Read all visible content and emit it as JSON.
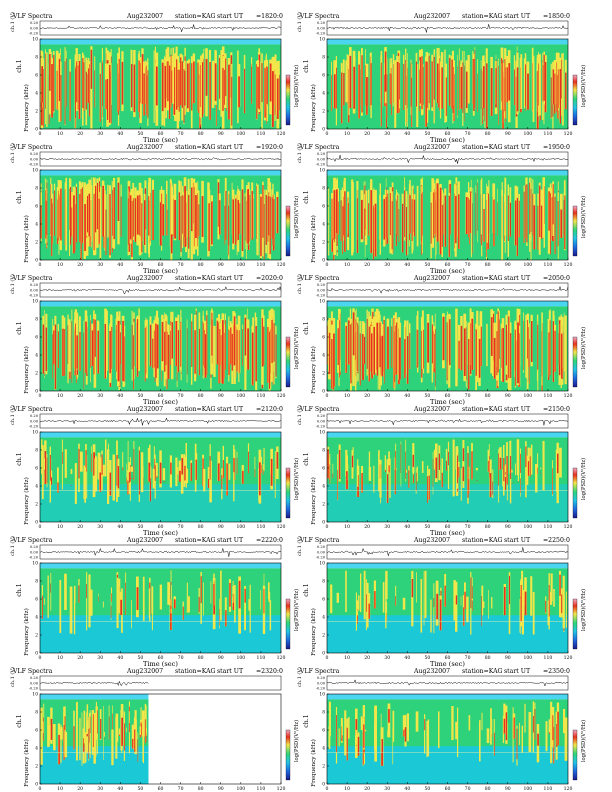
{
  "page": {
    "panel_title": "VLF Spectra",
    "date": "Aug232007",
    "station": "station=KAG",
    "ut_prefix": "start  UT"
  },
  "chart_data": [
    {
      "type": "heatmap",
      "ut": "=1820:0",
      "title": "VLF Spectra",
      "xlabel": "Time  (sec)",
      "ylabel": "Frequency  (kHz)",
      "channel_label": "ch.1",
      "waveform_label": "ch.1 (V)",
      "waveform_ticks": [
        "0.20",
        "0.00",
        "-0.20"
      ],
      "colorbar_label": "log(PSD)(V²/Hz)",
      "x_ticks": [
        0,
        10,
        20,
        30,
        40,
        50,
        60,
        70,
        80,
        90,
        100,
        110,
        120
      ],
      "y_ticks": [
        0,
        2,
        4,
        6,
        8,
        10
      ],
      "xlim": [
        0,
        120
      ],
      "ylim": [
        0,
        10
      ],
      "data_end": 120,
      "activity": "high"
    },
    {
      "type": "heatmap",
      "ut": "=1850:0",
      "title": "VLF Spectra",
      "xlabel": "Time  (sec)",
      "ylabel": "Frequency  (kHz)",
      "channel_label": "ch.1",
      "waveform_label": "ch.1 (V)",
      "waveform_ticks": [
        "0.20",
        "0.00",
        "-0.20"
      ],
      "colorbar_label": "log(PSD)(V²/Hz)",
      "x_ticks": [
        0,
        10,
        20,
        30,
        40,
        50,
        60,
        70,
        80,
        90,
        100,
        110,
        120
      ],
      "y_ticks": [
        0,
        2,
        4,
        6,
        8,
        10
      ],
      "xlim": [
        0,
        120
      ],
      "ylim": [
        0,
        10
      ],
      "data_end": 120,
      "activity": "high"
    },
    {
      "type": "heatmap",
      "ut": "=1920:0",
      "title": "VLF Spectra",
      "xlabel": "Time  (sec)",
      "ylabel": "Frequency  (kHz)",
      "channel_label": "ch.1",
      "waveform_label": "ch.1 (V)",
      "waveform_ticks": [
        "0.20",
        "0.00",
        "-0.20"
      ],
      "colorbar_label": "log(PSD)(V²/Hz)",
      "x_ticks": [
        0,
        10,
        20,
        30,
        40,
        50,
        60,
        70,
        80,
        90,
        100,
        110,
        120
      ],
      "y_ticks": [
        0,
        2,
        4,
        6,
        8,
        10
      ],
      "xlim": [
        0,
        120
      ],
      "ylim": [
        0,
        10
      ],
      "data_end": 120,
      "activity": "high"
    },
    {
      "type": "heatmap",
      "ut": "=1950:0",
      "title": "VLF Spectra",
      "xlabel": "Time  (sec)",
      "ylabel": "Frequency  (kHz)",
      "channel_label": "ch.1",
      "waveform_label": "ch.1 (V)",
      "waveform_ticks": [
        "0.20",
        "0.00",
        "-0.20"
      ],
      "colorbar_label": "log(PSD)(V²/Hz)",
      "x_ticks": [
        0,
        10,
        20,
        30,
        40,
        50,
        60,
        70,
        80,
        90,
        100,
        110,
        120
      ],
      "y_ticks": [
        0,
        2,
        4,
        6,
        8,
        10
      ],
      "xlim": [
        0,
        120
      ],
      "ylim": [
        0,
        10
      ],
      "data_end": 120,
      "activity": "high"
    },
    {
      "type": "heatmap",
      "ut": "=2020:0",
      "title": "VLF Spectra",
      "xlabel": "Time  (sec)",
      "ylabel": "Frequency  (kHz)",
      "channel_label": "ch.1",
      "waveform_label": "ch.1 (V)",
      "waveform_ticks": [
        "0.20",
        "0.00",
        "-0.20"
      ],
      "colorbar_label": "log(PSD)(V²/Hz)",
      "x_ticks": [
        0,
        10,
        20,
        30,
        40,
        50,
        60,
        70,
        80,
        90,
        100,
        110,
        120
      ],
      "y_ticks": [
        0,
        2,
        4,
        6,
        8,
        10
      ],
      "xlim": [
        0,
        120
      ],
      "ylim": [
        0,
        10
      ],
      "data_end": 120,
      "activity": "high"
    },
    {
      "type": "heatmap",
      "ut": "=2050:0",
      "title": "VLF Spectra",
      "xlabel": "Time  (sec)",
      "ylabel": "Frequency  (kHz)",
      "channel_label": "ch.1",
      "waveform_label": "ch.1 (V)",
      "waveform_ticks": [
        "0.20",
        "0.00",
        "-0.20"
      ],
      "colorbar_label": "log(PSD)(V²/Hz)",
      "x_ticks": [
        0,
        10,
        20,
        30,
        40,
        50,
        60,
        70,
        80,
        90,
        100,
        110,
        120
      ],
      "y_ticks": [
        0,
        2,
        4,
        6,
        8,
        10
      ],
      "xlim": [
        0,
        120
      ],
      "ylim": [
        0,
        10
      ],
      "data_end": 120,
      "activity": "high"
    },
    {
      "type": "heatmap",
      "ut": "=2120:0",
      "title": "VLF Spectra",
      "xlabel": "Time  (sec)",
      "ylabel": "Frequency  (kHz)",
      "channel_label": "ch.1",
      "waveform_label": "ch.1 (V)",
      "waveform_ticks": [
        "0.20",
        "0.00",
        "-0.20"
      ],
      "colorbar_label": "log(PSD)(V²/Hz)",
      "x_ticks": [
        0,
        10,
        20,
        30,
        40,
        50,
        60,
        70,
        80,
        90,
        100,
        110,
        120
      ],
      "y_ticks": [
        0,
        2,
        4,
        6,
        8,
        10
      ],
      "xlim": [
        0,
        120
      ],
      "ylim": [
        0,
        10
      ],
      "data_end": 120,
      "activity": "medium"
    },
    {
      "type": "heatmap",
      "ut": "=2150:0",
      "title": "VLF Spectra",
      "xlabel": "Time  (sec)",
      "ylabel": "Frequency  (kHz)",
      "channel_label": "ch.1",
      "waveform_label": "ch.1 (V)",
      "waveform_ticks": [
        "0.20",
        "0.00",
        "-0.20"
      ],
      "colorbar_label": "log(PSD)(V²/Hz)",
      "x_ticks": [
        0,
        10,
        20,
        30,
        40,
        50,
        60,
        70,
        80,
        90,
        100,
        110,
        120
      ],
      "y_ticks": [
        0,
        2,
        4,
        6,
        8,
        10
      ],
      "xlim": [
        0,
        120
      ],
      "ylim": [
        0,
        10
      ],
      "data_end": 120,
      "activity": "medium"
    },
    {
      "type": "heatmap",
      "ut": "=2220:0",
      "title": "VLF Spectra",
      "xlabel": "Time  (sec)",
      "ylabel": "Frequency  (kHz)",
      "channel_label": "ch.1",
      "waveform_label": "ch.1 (V)",
      "waveform_ticks": [
        "0.20",
        "0.00",
        "-0.20"
      ],
      "colorbar_label": "log(PSD)(V²/Hz)",
      "x_ticks": [
        0,
        10,
        20,
        30,
        40,
        50,
        60,
        70,
        80,
        90,
        100,
        110,
        120
      ],
      "y_ticks": [
        0,
        2,
        4,
        6,
        8,
        10
      ],
      "xlim": [
        0,
        120
      ],
      "ylim": [
        0,
        10
      ],
      "data_end": 120,
      "activity": "low"
    },
    {
      "type": "heatmap",
      "ut": "=2250:0",
      "title": "VLF Spectra",
      "xlabel": "Time  (sec)",
      "ylabel": "Frequency  (kHz)",
      "channel_label": "ch.1",
      "waveform_label": "ch.1 (V)",
      "waveform_ticks": [
        "0.20",
        "0.00",
        "-0.20"
      ],
      "colorbar_label": "log(PSD)(V²/Hz)",
      "x_ticks": [
        0,
        10,
        20,
        30,
        40,
        50,
        60,
        70,
        80,
        90,
        100,
        110,
        120
      ],
      "y_ticks": [
        0,
        2,
        4,
        6,
        8,
        10
      ],
      "xlim": [
        0,
        120
      ],
      "ylim": [
        0,
        10
      ],
      "data_end": 120,
      "activity": "low"
    },
    {
      "type": "heatmap",
      "ut": "=2320:0",
      "title": "VLF Spectra",
      "xlabel": "Time  (sec)",
      "ylabel": "Frequency  (kHz)",
      "channel_label": "ch.1",
      "waveform_label": "ch.1 (V)",
      "waveform_ticks": [
        "0.20",
        "0.00",
        "-0.20"
      ],
      "colorbar_label": "log(PSD)(V²/Hz)",
      "x_ticks": [
        0,
        10,
        20,
        30,
        40,
        50,
        60,
        70,
        80,
        90,
        100,
        110,
        120
      ],
      "y_ticks": [
        0,
        2,
        4,
        6,
        8,
        10
      ],
      "xlim": [
        0,
        120
      ],
      "ylim": [
        0,
        10
      ],
      "data_end": 54,
      "activity": "low"
    },
    {
      "type": "heatmap",
      "ut": "=2350:0",
      "title": "VLF Spectra",
      "xlabel": "Time  (sec)",
      "ylabel": "Frequency  (kHz)",
      "channel_label": "ch.1",
      "waveform_label": "ch.1 (V)",
      "waveform_ticks": [
        "0.20",
        "0.00",
        "-0.20"
      ],
      "colorbar_label": "log(PSD)(V²/Hz)",
      "x_ticks": [
        0,
        10,
        20,
        30,
        40,
        50,
        60,
        70,
        80,
        90,
        100,
        110,
        120
      ],
      "y_ticks": [
        0,
        2,
        4,
        6,
        8,
        10
      ],
      "xlim": [
        0,
        120
      ],
      "ylim": [
        0,
        10
      ],
      "data_end": 120,
      "activity": "low"
    }
  ],
  "colors": {
    "background_blue": "#19c8e6",
    "green": "#2dd27a",
    "yellow": "#f2e64a",
    "red": "#e6321e",
    "cyan_band": "#4ad6f0"
  }
}
